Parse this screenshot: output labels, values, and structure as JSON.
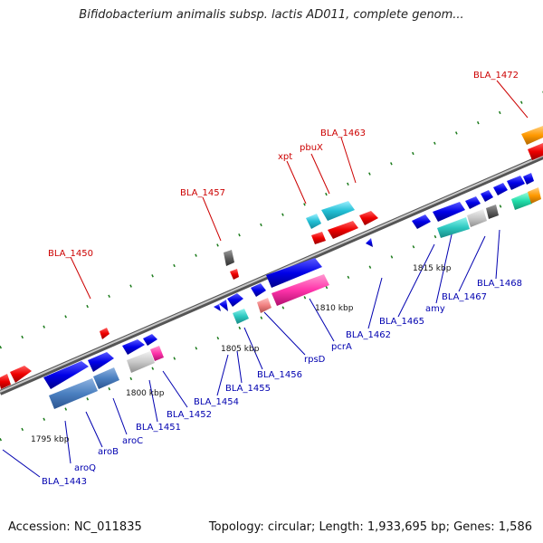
{
  "title": "Bifidobacterium animalis subsp. lactis AD011, complete genom...",
  "footer": {
    "accession": "Accession: NC_011835",
    "topology": "Topology: circular; Length: 1,933,695 bp; Genes: 1,586"
  },
  "colors": {
    "backbone": "#8a8a8a",
    "ticks": "#1a7a1a",
    "label_red": "#cc0000",
    "label_blue": "#0000b0",
    "gene_blue": "#0000ee",
    "gene_red": "#ee0000",
    "gene_steel": "#4a7fc0",
    "gene_cyan": "#22bfd5",
    "gene_teal": "#2dc8c0",
    "gene_magenta": "#ff33aa",
    "gene_silver": "#c8c8c8",
    "gene_darkgray": "#606060",
    "gene_salmon": "#f08080",
    "gene_orange": "#ff9900",
    "gene_mint": "#22ddaa"
  },
  "scale_labels": [
    "1795 kbp",
    "1800 kbp",
    "1805 kbp",
    "1810 kbp",
    "1815 kbp"
  ],
  "red_labels": [
    "BLA_1450",
    "BLA_1457",
    "xpt",
    "pbuX",
    "BLA_1463",
    "BLA_1472"
  ],
  "blue_labels": [
    "BLA_1443",
    "aroQ",
    "aroB",
    "aroC",
    "BLA_1451",
    "BLA_1452",
    "BLA_1454",
    "BLA_1455",
    "BLA_1456",
    "rpsD",
    "pcrA",
    "BLA_1462",
    "BLA_1465",
    "amy",
    "BLA_1467",
    "BLA_1468"
  ]
}
